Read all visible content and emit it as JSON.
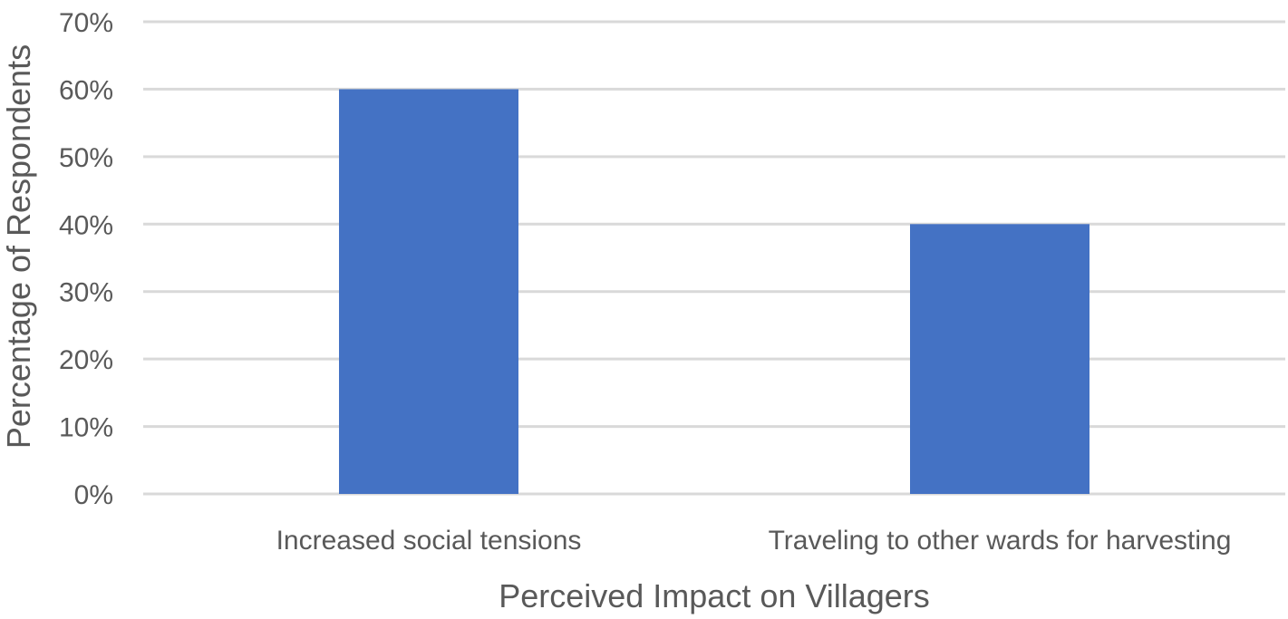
{
  "chart_data": {
    "type": "bar",
    "categories": [
      "Increased social tensions",
      "Traveling to other wards for harvesting"
    ],
    "values": [
      60,
      40
    ],
    "unit": "%",
    "title": "",
    "xlabel": "Perceived Impact on Villagers",
    "ylabel": "Percentage of Respondents",
    "ylim": [
      0,
      70
    ],
    "yticks": [
      "0%",
      "10%",
      "20%",
      "30%",
      "40%",
      "50%",
      "60%",
      "70%"
    ],
    "grid": true,
    "legend": "none",
    "bar_color": "#4472c4"
  }
}
